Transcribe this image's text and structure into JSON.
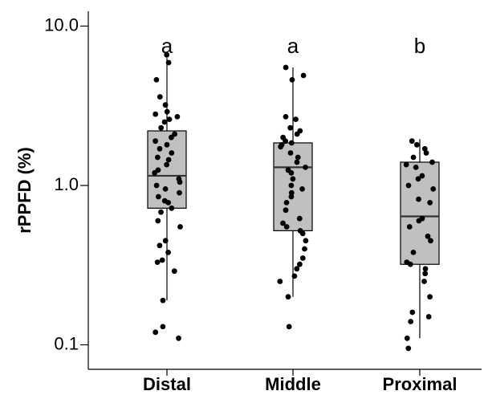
{
  "chart_data": {
    "type": "box",
    "ylabel": "rPPFD (%)",
    "xlabel": "",
    "y_scale": "log",
    "ylim": [
      0.09,
      13
    ],
    "yticks": [
      0.1,
      1.0,
      10.0
    ],
    "ytick_labels": [
      "0.1",
      "1.0",
      "10.0"
    ],
    "grid": false,
    "categories": [
      "Distal",
      "Middle",
      "Proximal"
    ],
    "group_letters": [
      "a",
      "a",
      "b"
    ],
    "box_fill": "#c0c0c0",
    "point_color": "#000000",
    "boxes": [
      {
        "category": "Distal",
        "whisker_low": 0.19,
        "q1": 0.72,
        "median": 1.15,
        "q3": 2.2,
        "whisker_high": 6.3
      },
      {
        "category": "Middle",
        "whisker_low": 0.2,
        "q1": 0.52,
        "median": 1.3,
        "q3": 1.85,
        "whisker_high": 5.5
      },
      {
        "category": "Proximal",
        "whisker_low": 0.11,
        "q1": 0.32,
        "median": 0.64,
        "q3": 1.4,
        "whisker_high": 1.95
      }
    ],
    "points": [
      {
        "category": "Distal",
        "values": [
          6.6,
          5.9,
          4.6,
          3.6,
          3.2,
          2.9,
          2.8,
          2.7,
          2.6,
          2.5,
          2.3,
          2.1,
          2.0,
          1.9,
          1.8,
          1.7,
          1.6,
          1.5,
          1.45,
          1.35,
          1.25,
          1.2,
          1.1,
          1.05,
          1.0,
          0.95,
          0.9,
          0.85,
          0.8,
          0.78,
          0.72,
          0.68,
          0.6,
          0.55,
          0.45,
          0.42,
          0.38,
          0.34,
          0.33,
          0.29,
          0.19,
          0.13,
          0.12,
          0.11
        ]
      },
      {
        "category": "Middle",
        "values": [
          5.5,
          4.9,
          4.6,
          2.7,
          2.6,
          2.3,
          2.2,
          2.1,
          2.0,
          1.9,
          1.85,
          1.8,
          1.75,
          1.6,
          1.5,
          1.4,
          1.3,
          1.25,
          1.2,
          1.1,
          1.0,
          0.95,
          0.9,
          0.85,
          0.78,
          0.7,
          0.62,
          0.58,
          0.55,
          0.52,
          0.5,
          0.45,
          0.4,
          0.35,
          0.32,
          0.3,
          0.27,
          0.25,
          0.2,
          0.13
        ]
      },
      {
        "category": "Proximal",
        "values": [
          1.9,
          1.8,
          1.7,
          1.6,
          1.5,
          1.4,
          1.35,
          1.3,
          1.15,
          1.1,
          1.0,
          0.95,
          0.82,
          0.78,
          0.62,
          0.6,
          0.55,
          0.48,
          0.45,
          0.38,
          0.33,
          0.32,
          0.3,
          0.28,
          0.25,
          0.2,
          0.16,
          0.15,
          0.14,
          0.11,
          0.095
        ]
      }
    ]
  }
}
